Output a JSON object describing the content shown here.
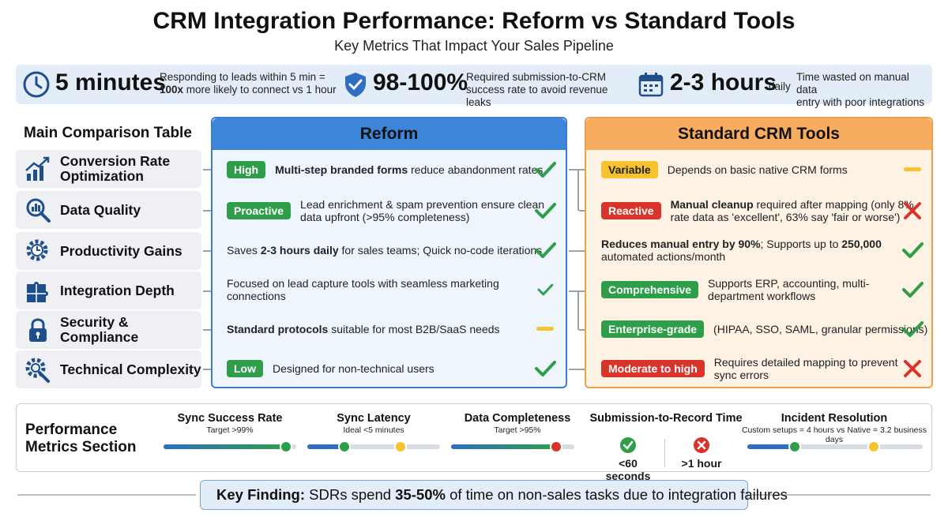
{
  "header": {
    "title": "CRM Integration Performance: Reform vs Standard Tools",
    "subtitle": "Key Metrics That Impact Your Sales Pipeline"
  },
  "stats": [
    {
      "icon": "clock-icon",
      "value": "5 minutes",
      "desc_pre": "Responding to leads within 5 min =",
      "desc_bold": "100x",
      "desc_post": " more likely to connect vs 1 hour"
    },
    {
      "icon": "shield-check-icon",
      "value": "98-100%",
      "desc_line1": "Required submission-to-CRM",
      "desc_line2": "success rate to avoid revenue leaks"
    },
    {
      "icon": "calendar-icon",
      "value": "2-3 hours",
      "suffix": "daily",
      "desc_line1": "Time wasted on manual data",
      "desc_line2": "entry with poor integrations"
    }
  ],
  "main_table": {
    "heading": "Main Comparison Table",
    "reform_heading": "Reform",
    "standard_heading": "Standard CRM Tools",
    "rows": [
      {
        "label_line1": "Conversion Rate",
        "label_line2": "Optimization",
        "icon": "chart-growth-icon",
        "reform": {
          "badge": "High",
          "bold": "Multi-step branded forms",
          "text": " reduce abandonment rates",
          "mark": "check-icon"
        },
        "standard": {
          "badge": "Variable",
          "text": "Depends on basic native CRM forms",
          "mark": "dash-icon"
        }
      },
      {
        "label_line1": "Data Quality",
        "label_line2": "",
        "icon": "magnifier-data-icon",
        "reform": {
          "badge": "Proactive",
          "line1": "Lead enrichment & spam prevention ensure clean",
          "line2": "data upfront (>95% completeness)",
          "mark": "check-icon"
        },
        "standard": {
          "badge": "Reactive",
          "bold": "Manual cleanup",
          "line1_rest": " required after mapping (only 8%",
          "line2": "rate data as 'excellent', 63% say 'fair or worse')",
          "mark": "x-icon"
        }
      },
      {
        "label_line1": "Productivity Gains",
        "label_line2": "",
        "icon": "gear-clock-icon",
        "reform": {
          "pre": "Saves ",
          "bold": "2-3 hours daily",
          "post": " for sales teams; Quick no-code iterations",
          "mark": "check-icon"
        },
        "standard": {
          "bold1": "Reduces manual entry by 90%",
          "mid": "; Supports up to ",
          "bold2": "250,000",
          "line2": "automated actions/month",
          "mark": "check-icon"
        }
      },
      {
        "label_line1": "Integration Depth",
        "label_line2": "",
        "icon": "puzzle-icon",
        "reform": {
          "line1": "Focused on lead capture tools with seamless marketing",
          "line2": "connections",
          "mark": "check-icon"
        },
        "standard": {
          "badge": "Comprehensive",
          "line1": "Supports ERP, accounting, multi-",
          "line2": "department workflows",
          "mark": "check-icon"
        }
      },
      {
        "label_line1": "Security & Compliance",
        "label_line2": "",
        "icon": "lock-icon",
        "reform": {
          "bold": "Standard protocols",
          "text": " suitable for most B2B/SaaS needs",
          "mark": "dash-icon"
        },
        "standard": {
          "badge": "Enterprise-grade",
          "text": "(HIPAA, SSO, SAML, granular permissions)",
          "mark": "check-icon"
        }
      },
      {
        "label_line1": "Technical Complexity",
        "label_line2": "",
        "icon": "gear-wrench-icon",
        "reform": {
          "badge": "Low",
          "text": "Designed for non-technical users",
          "mark": "check-icon"
        },
        "standard": {
          "badge": "Moderate to high",
          "line1": "Requires detailed mapping to prevent",
          "line2": "sync errors",
          "mark": "x-icon"
        }
      }
    ]
  },
  "performance": {
    "heading_line1": "Performance",
    "heading_line2": "Metrics Section",
    "metrics": [
      {
        "title": "Sync Success Rate",
        "sub": "Target >99%",
        "level": 0.92
      },
      {
        "title": "Sync Latency",
        "sub": "Ideal <5 minutes",
        "level_a": 0.28,
        "level_b": 0.7
      },
      {
        "title": "Data Completeness",
        "sub": "Target >95%",
        "level": 0.85
      },
      {
        "title": "Submission-to-Record Time",
        "left_value": "<60 seconds",
        "right_value": ">1 hour"
      },
      {
        "title": "Incident Resolution",
        "sub": "Custom setups = 4 hours vs Native = 3.2 business days",
        "level_a": 0.27,
        "level_b": 0.72
      }
    ]
  },
  "finding": {
    "label": "Key Finding:",
    "pre": " SDRs spend ",
    "bold": "35-50%",
    "post": " of time on non-sales tasks due to integration failures"
  },
  "colors": {
    "blue": "#3d85d8",
    "orange": "#f6ad5f",
    "green": "#2e9e4b",
    "yellow": "#f6c22d",
    "red": "#d9342b"
  }
}
